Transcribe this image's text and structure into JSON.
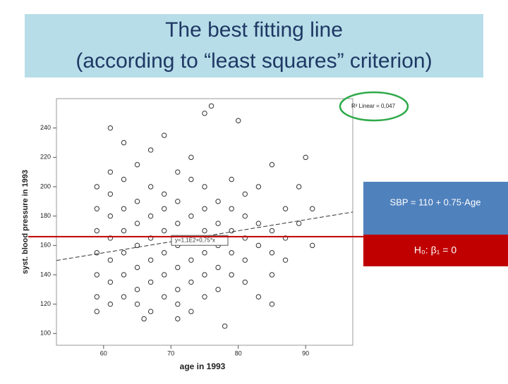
{
  "chart_data": {
    "type": "scatter",
    "title": [
      "The best fitting line",
      "(according to “least squares” criterion)"
    ],
    "xlabel": "age in 1993",
    "ylabel": "syst. blood pressure in 1993",
    "xlim": [
      53,
      97
    ],
    "xticks": [
      60,
      70,
      80,
      90
    ],
    "ylim": [
      92,
      260
    ],
    "yticks": [
      100,
      120,
      140,
      160,
      180,
      200,
      220,
      240
    ],
    "r2_label": "R² Linear = 0,047",
    "fit_label": "y=1,1E2+0,75*x",
    "fit_line": {
      "intercept": 110,
      "slope": 0.75
    },
    "h0_line": 166,
    "annotations": [
      "SBP = 110 + 0.75·Age",
      "H₀: β₁ = 0"
    ],
    "x": [
      59,
      59,
      59,
      59,
      59,
      59,
      59,
      61,
      61,
      61,
      61,
      61,
      61,
      61,
      63,
      63,
      63,
      63,
      63,
      63,
      63,
      65,
      65,
      65,
      65,
      65,
      65,
      65,
      67,
      67,
      67,
      67,
      67,
      67,
      67,
      69,
      69,
      69,
      69,
      69,
      69,
      69,
      71,
      71,
      71,
      71,
      71,
      71,
      71,
      73,
      73,
      73,
      73,
      73,
      73,
      73,
      75,
      75,
      75,
      75,
      75,
      75,
      75,
      77,
      77,
      77,
      77,
      77,
      79,
      79,
      79,
      79,
      79,
      81,
      81,
      81,
      81,
      81,
      83,
      83,
      83,
      83,
      85,
      85,
      85,
      85,
      87,
      87,
      87,
      89,
      89,
      91,
      91,
      61,
      66,
      71,
      76,
      80,
      90,
      85,
      78
    ],
    "values": [
      115,
      125,
      140,
      155,
      170,
      185,
      200,
      120,
      135,
      150,
      165,
      180,
      195,
      210,
      125,
      140,
      155,
      170,
      185,
      205,
      230,
      120,
      130,
      145,
      160,
      175,
      190,
      215,
      115,
      135,
      150,
      165,
      180,
      200,
      225,
      125,
      140,
      155,
      170,
      185,
      195,
      235,
      120,
      130,
      145,
      160,
      175,
      190,
      210,
      115,
      135,
      150,
      165,
      180,
      205,
      220,
      125,
      140,
      155,
      170,
      185,
      200,
      250,
      130,
      145,
      160,
      175,
      190,
      140,
      155,
      170,
      185,
      205,
      135,
      150,
      165,
      180,
      195,
      125,
      160,
      175,
      200,
      140,
      155,
      170,
      215,
      150,
      165,
      185,
      175,
      200,
      160,
      185,
      240,
      110,
      110,
      255,
      245,
      220,
      120,
      105
    ]
  }
}
